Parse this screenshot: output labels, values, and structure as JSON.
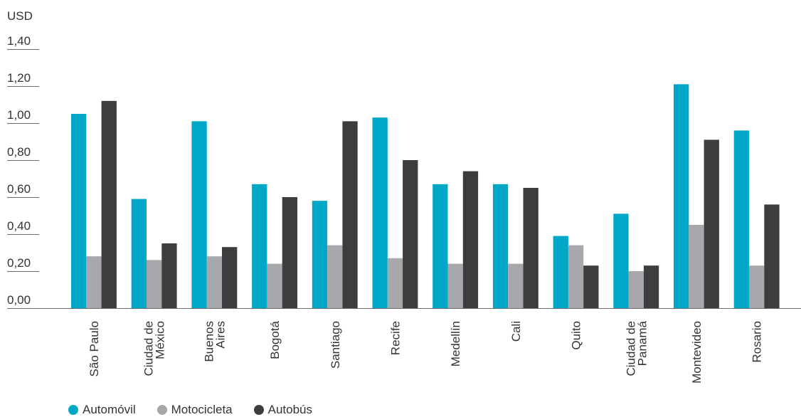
{
  "chart_data": {
    "type": "bar",
    "ylabel": "USD",
    "ylim": [
      0,
      1.4
    ],
    "yticks": [
      "0,00",
      "0,20",
      "0,40",
      "0,60",
      "0,80",
      "1,00",
      "1,20",
      "1,40"
    ],
    "categories": [
      [
        "São Paulo"
      ],
      [
        "Ciudad de",
        "México"
      ],
      [
        "Buenos",
        "Aires"
      ],
      [
        "Bogotá"
      ],
      [
        "Santiago"
      ],
      [
        "Recife"
      ],
      [
        "Medellín"
      ],
      [
        "Cali"
      ],
      [
        "Quito"
      ],
      [
        "Ciudad de",
        "Panamá"
      ],
      [
        "Montevideo"
      ],
      [
        "Rosario"
      ]
    ],
    "series": [
      {
        "name": "Automóvil",
        "color": "#00a7c7",
        "values": [
          1.05,
          0.59,
          1.01,
          0.67,
          0.58,
          1.03,
          0.67,
          0.67,
          0.39,
          0.51,
          1.21,
          0.96
        ]
      },
      {
        "name": "Motocicleta",
        "color": "#a7a8ab",
        "values": [
          0.28,
          0.26,
          0.28,
          0.24,
          0.34,
          0.27,
          0.24,
          0.24,
          0.34,
          0.2,
          0.45,
          0.23
        ]
      },
      {
        "name": "Autobús",
        "color": "#3d3c3e",
        "values": [
          1.12,
          0.35,
          0.33,
          0.6,
          1.01,
          0.8,
          0.74,
          0.65,
          0.23,
          0.23,
          0.91,
          0.56
        ]
      }
    ],
    "legend_position": "bottom-left"
  }
}
